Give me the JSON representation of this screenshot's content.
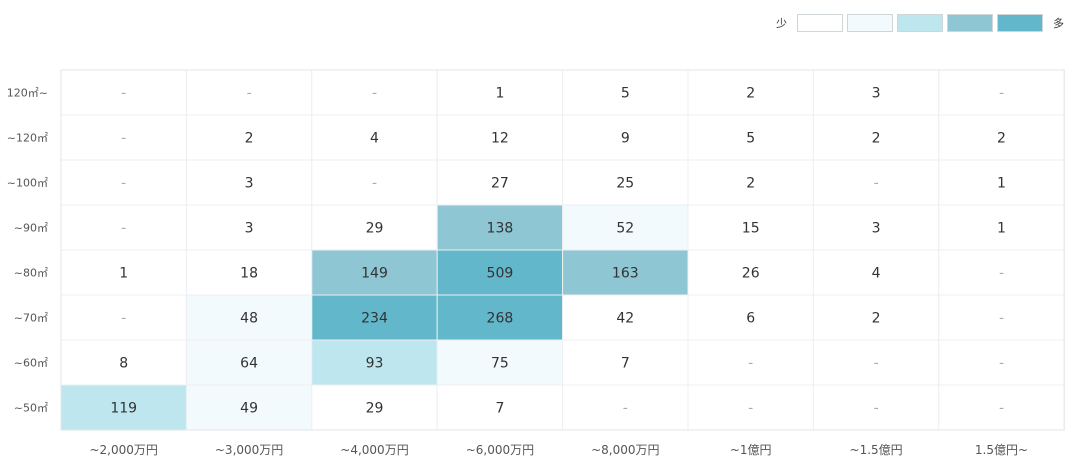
{
  "legend": {
    "low_label": "少",
    "high_label": "多",
    "colors": [
      "#ffffff",
      "#f3fafd",
      "#bde6ef",
      "#8ec6d3",
      "#62b7ca"
    ]
  },
  "chart_data": {
    "type": "heatmap",
    "title": "",
    "xlabel": "",
    "ylabel": "",
    "x_categories": [
      "~2,000万円",
      "~3,000万円",
      "~4,000万円",
      "~6,000万円",
      "~8,000万円",
      "~1億円",
      "~1.5億円",
      "1.5億円~"
    ],
    "y_categories": [
      "120㎡~",
      "~120㎡",
      "~100㎡",
      "~90㎡",
      "~80㎡",
      "~70㎡",
      "~60㎡",
      "~50㎡"
    ],
    "empty_symbol": "-",
    "values": [
      [
        null,
        null,
        null,
        1,
        5,
        2,
        3,
        null
      ],
      [
        null,
        2,
        4,
        12,
        9,
        5,
        2,
        2
      ],
      [
        null,
        3,
        null,
        27,
        25,
        2,
        null,
        1
      ],
      [
        null,
        3,
        29,
        138,
        52,
        15,
        3,
        1
      ],
      [
        1,
        18,
        149,
        509,
        163,
        26,
        4,
        null
      ],
      [
        null,
        48,
        234,
        268,
        42,
        6,
        2,
        null
      ],
      [
        8,
        64,
        93,
        75,
        7,
        null,
        null,
        null
      ],
      [
        119,
        49,
        29,
        7,
        null,
        null,
        null,
        null
      ]
    ],
    "levels": [
      [
        0,
        0,
        0,
        0,
        0,
        0,
        0,
        0
      ],
      [
        0,
        0,
        0,
        0,
        0,
        0,
        0,
        0
      ],
      [
        0,
        0,
        0,
        0,
        0,
        0,
        0,
        0
      ],
      [
        0,
        0,
        0,
        3,
        1,
        0,
        0,
        0
      ],
      [
        0,
        0,
        3,
        4,
        3,
        0,
        0,
        0
      ],
      [
        0,
        1,
        4,
        4,
        0,
        0,
        0,
        0
      ],
      [
        0,
        1,
        2,
        1,
        0,
        0,
        0,
        0
      ],
      [
        2,
        1,
        0,
        0,
        0,
        0,
        0,
        0
      ]
    ]
  }
}
